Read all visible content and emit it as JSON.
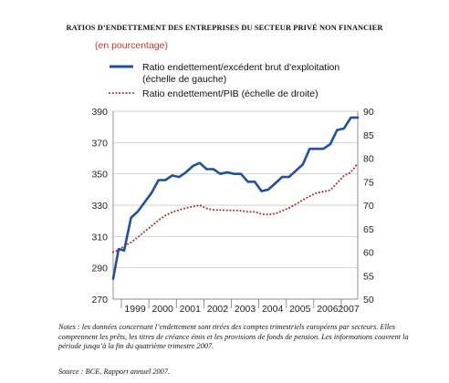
{
  "chart_data": {
    "type": "line",
    "title": "RATIOS D’ENDETTEMENT DES ENTREPRISES DU SECTEUR PRIVÉ NON FINANCIER",
    "subtitle": "(en pourcentage)",
    "x_ticks": [
      "1999",
      "2000",
      "2001",
      "2002",
      "2003",
      "2004",
      "2005",
      "2006",
      "2007"
    ],
    "y_left": {
      "min": 270,
      "max": 390,
      "ticks": [
        270,
        290,
        310,
        330,
        350,
        370,
        390
      ]
    },
    "y_right": {
      "min": 50,
      "max": 90,
      "ticks": [
        50,
        55,
        60,
        65,
        70,
        75,
        80,
        85,
        90
      ]
    },
    "grid": true,
    "legend_position": "top-left",
    "series": [
      {
        "name": "Ratio endettement/excédent brut d'exploitation",
        "name_line2": "(échelle de gauche)",
        "axis": "left",
        "style": "solid",
        "color": "#1f4fa3",
        "x": [
          1998.7,
          1998.9,
          1999.1,
          1999.35,
          1999.6,
          1999.85,
          2000.1,
          2000.35,
          2000.6,
          2000.85,
          2001.1,
          2001.35,
          2001.6,
          2001.85,
          2002.1,
          2002.35,
          2002.6,
          2002.85,
          2003.1,
          2003.35,
          2003.6,
          2003.85,
          2004.1,
          2004.35,
          2004.6,
          2004.85,
          2005.1,
          2005.35,
          2005.6,
          2005.85,
          2006.1,
          2006.35,
          2006.6,
          2006.85,
          2007.1,
          2007.35,
          2007.6
        ],
        "y": [
          283,
          302,
          301,
          322,
          326,
          332,
          338,
          346,
          346,
          349,
          348,
          351,
          355,
          357,
          353,
          353,
          350,
          351,
          350,
          350,
          345,
          345,
          339,
          340,
          344,
          348,
          348,
          352,
          356,
          366,
          366,
          366,
          369,
          378,
          379,
          386,
          386
        ]
      },
      {
        "name": "Ratio endettement/PIB (échelle de droite)",
        "axis": "right",
        "style": "dotted",
        "color": "#a0302a",
        "x": [
          1998.7,
          1998.9,
          1999.1,
          1999.35,
          1999.6,
          1999.85,
          2000.1,
          2000.35,
          2000.6,
          2000.85,
          2001.1,
          2001.35,
          2001.6,
          2001.85,
          2002.1,
          2002.35,
          2002.6,
          2002.85,
          2003.1,
          2003.35,
          2003.6,
          2003.85,
          2004.1,
          2004.35,
          2004.6,
          2004.85,
          2005.1,
          2005.35,
          2005.6,
          2005.85,
          2006.1,
          2006.35,
          2006.6,
          2006.85,
          2007.1,
          2007.35,
          2007.6
        ],
        "y": [
          60.0,
          60.4,
          61.3,
          62.1,
          63.2,
          64.4,
          65.6,
          66.8,
          67.8,
          68.5,
          69.0,
          69.4,
          69.7,
          70.0,
          69.3,
          69.0,
          69.0,
          68.9,
          68.9,
          68.8,
          68.6,
          68.6,
          68.1,
          68.0,
          68.2,
          68.8,
          69.4,
          70.2,
          71.1,
          71.9,
          72.6,
          72.9,
          73.2,
          74.7,
          76.3,
          77.0,
          78.9
        ]
      }
    ]
  },
  "notes": "Notes : les données concernant l’endettement sont tirées des comptes trimestriels européens par secteurs. Elles comprennent les prêts, les titres de créance émis et les provisions de fonds de pension. Les informations couvrent la période jusqu’à la fin du quatrième trimestre 2007.",
  "source": "Source : BCE. Rapport annuel 2007."
}
